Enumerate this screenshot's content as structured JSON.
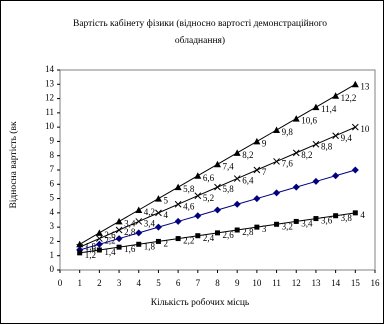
{
  "chart_data": {
    "type": "line",
    "title": "Вартість кабінету фізики (відносно вартості демонстраційного",
    "subtitle": "обладнання)",
    "x_label": "Кількість робочих місць",
    "y_label": "Відносна вартість (вк",
    "x": [
      1,
      2,
      3,
      4,
      5,
      6,
      7,
      8,
      9,
      10,
      11,
      12,
      13,
      14,
      15
    ],
    "xlim": [
      0,
      16
    ],
    "xticks": [
      0,
      1,
      2,
      3,
      4,
      5,
      6,
      7,
      8,
      9,
      10,
      11,
      12,
      13,
      14,
      15,
      16
    ],
    "ylim": [
      0,
      14
    ],
    "yticks": [
      0,
      1,
      2,
      3,
      4,
      5,
      6,
      7,
      8,
      9,
      10,
      11,
      12,
      13,
      14
    ],
    "grid": false,
    "series": [
      {
        "color": "#000000",
        "marker": "triangle",
        "values": [
          1.8,
          2.6,
          3.4,
          4.2,
          5,
          5.8,
          6.6,
          7.4,
          8.2,
          9,
          9.8,
          10.6,
          11.4,
          12.2,
          13
        ],
        "value_labels": [
          "1,8",
          "2,6",
          "3,4",
          "4,2",
          "5",
          "5,8",
          "6,6",
          "7,4",
          "8,2",
          "9",
          "9,8",
          "10,6",
          "11,4",
          "12,2",
          "13"
        ]
      },
      {
        "color": "#000000",
        "marker": "cross",
        "values": [
          1.6,
          2.2,
          2.8,
          3.4,
          4,
          4.6,
          5.2,
          5.8,
          6.4,
          7,
          7.6,
          8.2,
          8.8,
          9.4,
          10
        ],
        "value_labels": [
          "1,6",
          "2,2",
          "2,8",
          "3,4",
          "4",
          "4,6",
          "5,2",
          "5,8",
          "6,4",
          "7",
          "7,6",
          "8,2",
          "8,8",
          "9,4",
          "10"
        ]
      },
      {
        "color": "#000080",
        "marker": "diamond",
        "values": [
          1.4,
          1.8,
          2.2,
          2.6,
          3,
          3.4,
          3.8,
          4.2,
          4.6,
          5,
          5.4,
          5.8,
          6.2,
          6.6,
          7
        ]
      },
      {
        "color": "#000000",
        "marker": "square",
        "values": [
          1.2,
          1.4,
          1.6,
          1.8,
          2,
          2.2,
          2.4,
          2.6,
          2.8,
          3,
          3.2,
          3.4,
          3.6,
          3.8,
          4
        ],
        "value_labels": [
          "1,2",
          "1,4",
          "1,6",
          "1,8",
          "2",
          "2,2",
          "2,4",
          "2,6",
          "2,8",
          "3",
          "3,2",
          "3,4",
          "3,6",
          "3,8",
          "4"
        ]
      }
    ]
  }
}
